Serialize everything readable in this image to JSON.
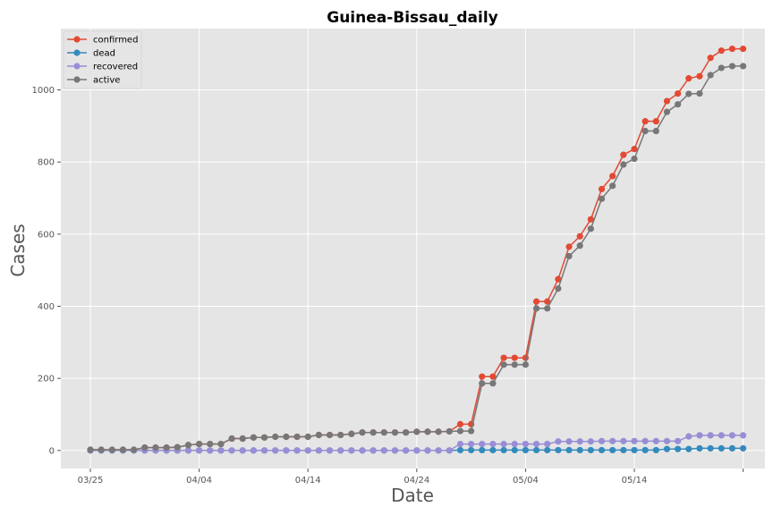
{
  "chart_data": {
    "type": "line",
    "title": "Guinea-Bissau_daily",
    "xlabel": "Date",
    "ylabel": "Cases",
    "x_start": "03/25",
    "x_end": "05/24",
    "x_tick_labels": [
      "03/25",
      "04/04",
      "04/14",
      "04/24",
      "05/04",
      "05/14",
      ""
    ],
    "y_ticks": [
      0,
      200,
      400,
      600,
      800,
      1000
    ],
    "ylim": [
      -50,
      1170
    ],
    "grid": true,
    "legend_position": "top-left",
    "series": [
      {
        "name": "confirmed",
        "color": "#E24A33",
        "values": [
          2,
          2,
          2,
          2,
          2,
          8,
          8,
          8,
          9,
          15,
          18,
          18,
          18,
          33,
          33,
          36,
          36,
          38,
          38,
          38,
          38,
          43,
          43,
          43,
          46,
          50,
          50,
          50,
          50,
          50,
          52,
          52,
          52,
          53,
          73,
          73,
          205,
          205,
          257,
          257,
          257,
          413,
          413,
          475,
          565,
          594,
          641,
          725,
          761,
          820,
          836,
          913,
          913,
          969,
          990,
          1032,
          1038,
          1089,
          1109,
          1114,
          1114
        ]
      },
      {
        "name": "dead",
        "color": "#348ABD",
        "values": [
          0,
          0,
          0,
          0,
          0,
          0,
          0,
          0,
          0,
          0,
          0,
          0,
          0,
          0,
          0,
          0,
          0,
          0,
          0,
          0,
          0,
          0,
          0,
          0,
          0,
          0,
          0,
          0,
          0,
          0,
          0,
          0,
          0,
          0,
          1,
          1,
          1,
          1,
          1,
          1,
          1,
          1,
          1,
          1,
          1,
          1,
          1,
          1,
          1,
          1,
          1,
          1,
          1,
          4,
          4,
          4,
          6,
          6,
          6,
          6,
          6
        ]
      },
      {
        "name": "recovered",
        "color": "#988ED5",
        "values": [
          0,
          0,
          0,
          0,
          0,
          0,
          0,
          0,
          0,
          0,
          0,
          0,
          0,
          0,
          0,
          0,
          0,
          0,
          0,
          0,
          0,
          0,
          0,
          0,
          0,
          0,
          0,
          0,
          0,
          0,
          0,
          0,
          0,
          0,
          18,
          18,
          18,
          18,
          18,
          18,
          18,
          18,
          18,
          25,
          25,
          25,
          25,
          26,
          26,
          26,
          26,
          26,
          26,
          26,
          26,
          39,
          42,
          42,
          42,
          42,
          42
        ]
      },
      {
        "name": "active",
        "color": "#777777",
        "values": [
          2,
          2,
          2,
          2,
          2,
          8,
          8,
          8,
          9,
          15,
          18,
          18,
          18,
          33,
          33,
          36,
          36,
          38,
          38,
          38,
          38,
          43,
          43,
          43,
          46,
          50,
          50,
          50,
          50,
          50,
          52,
          52,
          52,
          53,
          54,
          54,
          186,
          186,
          238,
          238,
          238,
          394,
          394,
          449,
          539,
          568,
          615,
          698,
          734,
          793,
          809,
          886,
          886,
          939,
          960,
          989,
          990,
          1041,
          1061,
          1066,
          1066
        ]
      }
    ]
  }
}
